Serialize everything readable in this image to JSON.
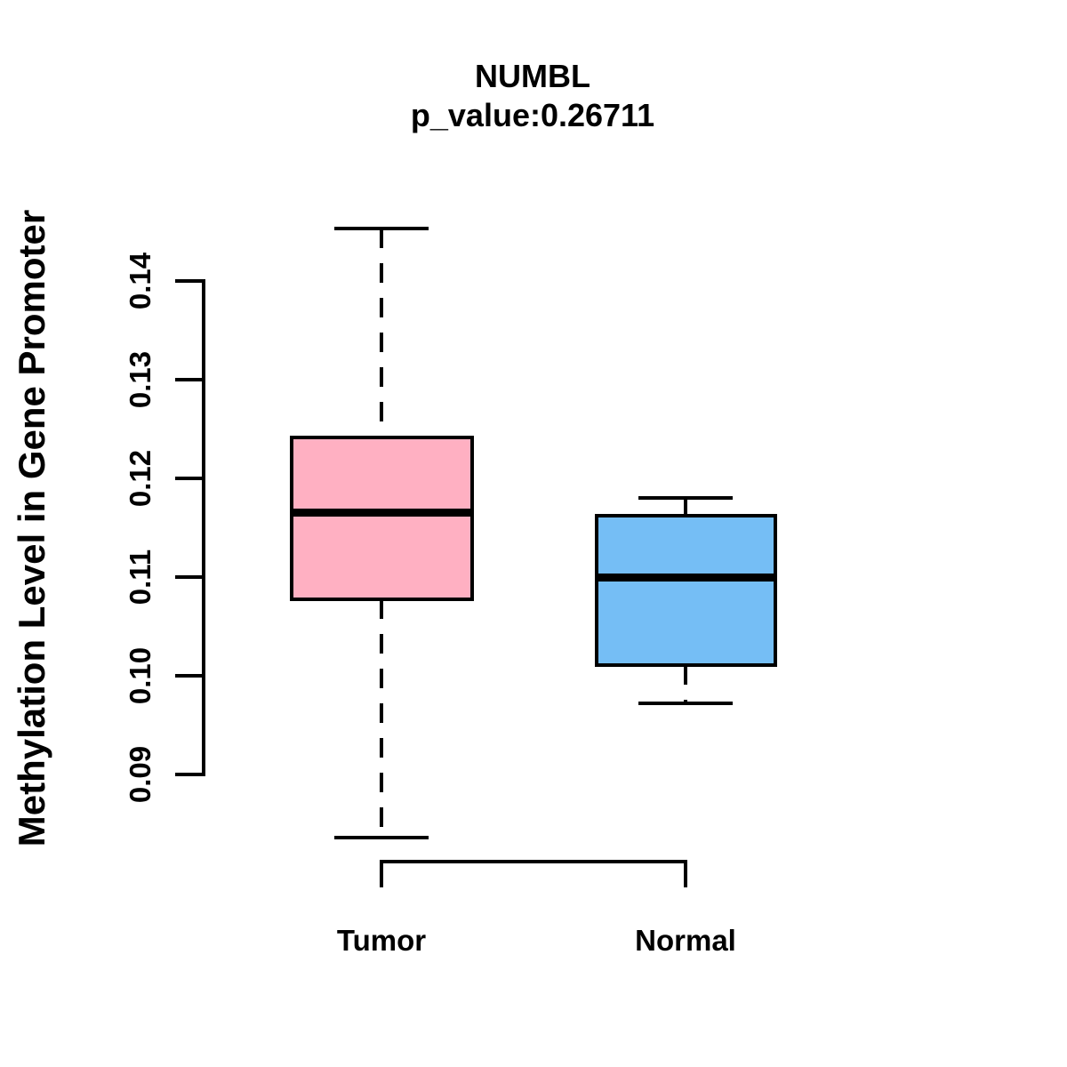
{
  "chart_data": {
    "type": "boxplot",
    "title": "NUMBL",
    "subtitle": "p_value:0.26711",
    "p_value": 0.26711,
    "ylabel": "Methylation Level in Gene Promoter",
    "ylim": [
      0.09,
      0.14
    ],
    "yticks": [
      0.09,
      0.1,
      0.11,
      0.12,
      0.13,
      0.14
    ],
    "ytick_labels": [
      "0.09",
      "0.10",
      "0.11",
      "0.12",
      "0.13",
      "0.14"
    ],
    "categories": [
      "Tumor",
      "Normal"
    ],
    "series": [
      {
        "name": "Tumor",
        "color": "#FFB0C2",
        "whisker_low": 0.0836,
        "q1": 0.1077,
        "median": 0.1165,
        "q3": 0.1241,
        "whisker_high": 0.1453
      },
      {
        "name": "Normal",
        "color": "#75BEF5",
        "whisker_low": 0.0972,
        "q1": 0.101,
        "median": 0.1099,
        "q3": 0.1162,
        "whisker_high": 0.118
      }
    ],
    "box_border_color": "#000000",
    "median_color": "#000000",
    "whisker_style": "dashed",
    "background": "#FFFFFF",
    "grid": false,
    "legend": false
  }
}
